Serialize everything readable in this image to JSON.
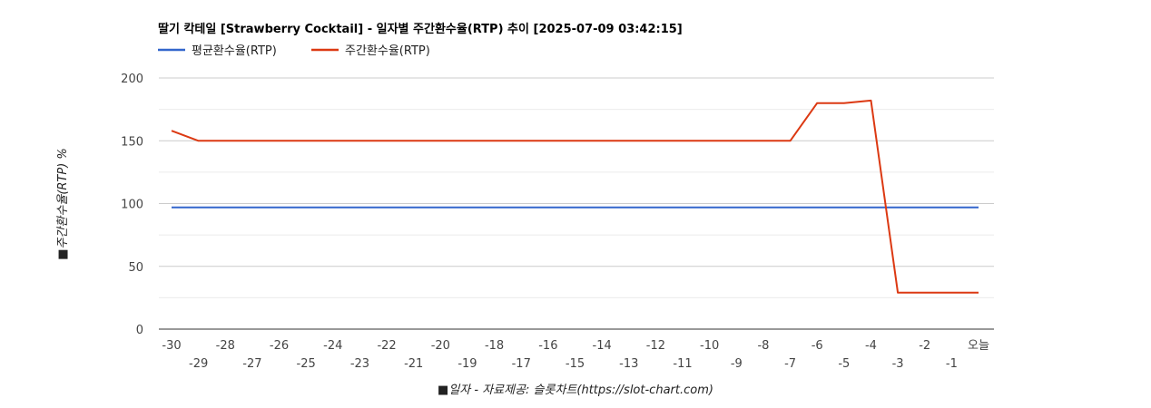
{
  "chart_data": {
    "type": "line",
    "title": "딸기 칵테일 [Strawberry Cocktail] - 일자별 주간환수율(RTP) 추이 [2025-07-09 03:42:15]",
    "xlabel": "■일자 - 자료제공: 슬롯차트(https://slot-chart.com)",
    "ylabel": "■주간환수율(RTP) %",
    "categories": [
      "-30",
      "-29",
      "-28",
      "-27",
      "-26",
      "-25",
      "-24",
      "-23",
      "-22",
      "-21",
      "-20",
      "-19",
      "-18",
      "-17",
      "-16",
      "-15",
      "-14",
      "-13",
      "-12",
      "-11",
      "-10",
      "-9",
      "-8",
      "-7",
      "-6",
      "-5",
      "-4",
      "-3",
      "-2",
      "-1",
      "오늘"
    ],
    "y_ticks": [
      "0",
      "50",
      "100",
      "150",
      "200"
    ],
    "ylim": [
      0,
      200
    ],
    "grid": true,
    "legend_position": "top-left",
    "series": [
      {
        "name": "평균환수율(RTP)",
        "color": "#3366cc",
        "values": [
          97,
          97,
          97,
          97,
          97,
          97,
          97,
          97,
          97,
          97,
          97,
          97,
          97,
          97,
          97,
          97,
          97,
          97,
          97,
          97,
          97,
          97,
          97,
          97,
          97,
          97,
          97,
          97,
          97,
          97,
          97
        ]
      },
      {
        "name": "주간환수율(RTP)",
        "color": "#dc3912",
        "values": [
          158,
          150,
          150,
          150,
          150,
          150,
          150,
          150,
          150,
          150,
          150,
          150,
          150,
          150,
          150,
          150,
          150,
          150,
          150,
          150,
          150,
          150,
          150,
          150,
          180,
          180,
          182,
          29,
          29,
          29,
          29
        ]
      }
    ]
  }
}
